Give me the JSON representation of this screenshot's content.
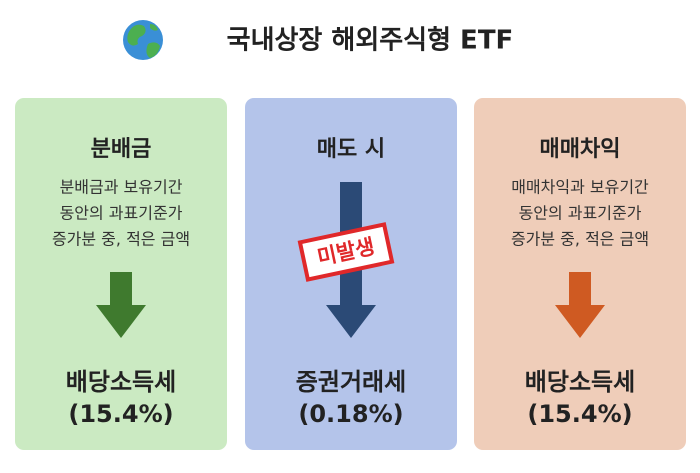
{
  "title": "국내상장 해외주식형 ETF",
  "cards": [
    {
      "heading": "분배금",
      "description": [
        "분배금과 보유기간",
        "동안의 과표기준가",
        "증가분 중, 적은 금액"
      ],
      "result": "배당소득세",
      "rate": "(15.4%)"
    },
    {
      "heading": "매도 시",
      "stamp": "미발생",
      "result": "증권거래세",
      "rate": "(0.18%)"
    },
    {
      "heading": "매매차익",
      "description": [
        "매매차익과 보유기간",
        "동안의 과표기준가",
        "증가분 중, 적은 금액"
      ],
      "result": "배당소득세",
      "rate": "(15.4%)"
    }
  ]
}
